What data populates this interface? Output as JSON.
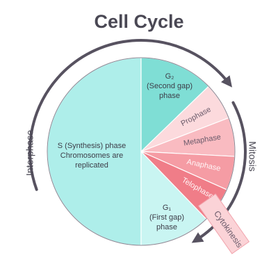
{
  "title": "Cell Cycle",
  "interphase_label": "Interphase",
  "mitosis_label": "Mitosis",
  "cytokinesis_label": "Cytokinesis",
  "segments": [
    {
      "name": "s-phase",
      "lines": [
        "S (Synthesis) phase",
        "Chromosomes are",
        "replicated"
      ]
    },
    {
      "name": "g2-phase",
      "lines": [
        "G₂",
        "(Second gap)",
        "phase"
      ]
    },
    {
      "name": "prophase",
      "lines": [
        "Prophase"
      ]
    },
    {
      "name": "metaphase",
      "lines": [
        "Metaphase"
      ]
    },
    {
      "name": "anaphase",
      "lines": [
        "Anaphase"
      ]
    },
    {
      "name": "telophase",
      "lines": [
        "Telophase"
      ]
    },
    {
      "name": "g1-phase",
      "lines": [
        "G₁",
        "(First gap)",
        "phase"
      ]
    }
  ]
}
